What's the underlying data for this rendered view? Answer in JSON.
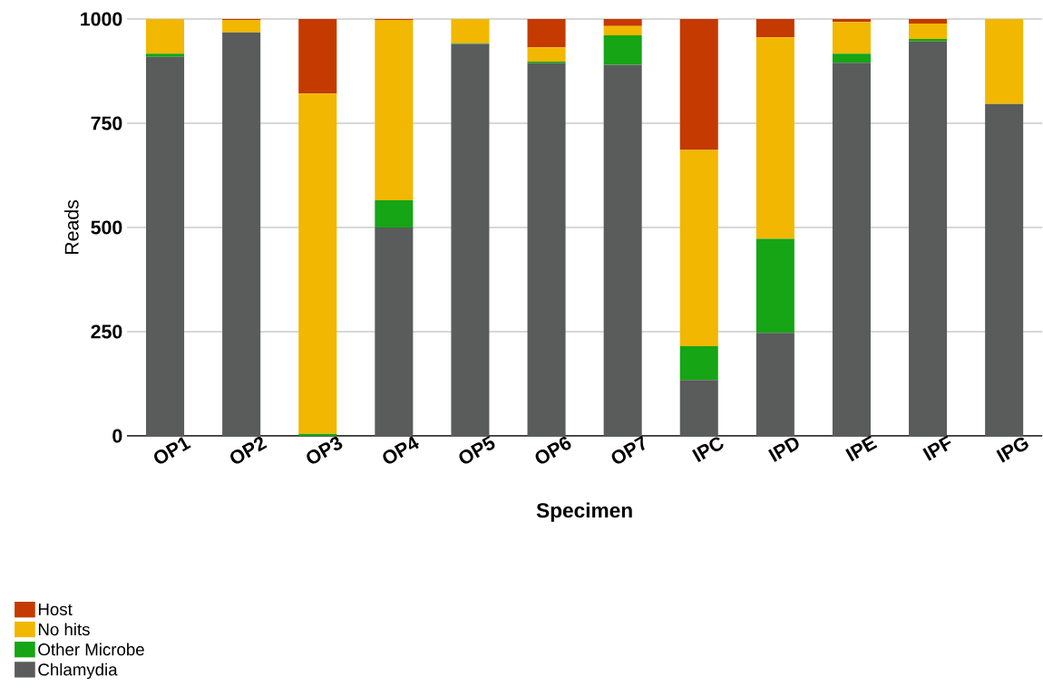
{
  "chart_data": {
    "type": "bar",
    "stacked": true,
    "xlabel": "Specimen",
    "ylabel": "Reads",
    "categories": [
      "OP1",
      "OP2",
      "OP3",
      "OP4",
      "OP5",
      "OP6",
      "OP7",
      "IPC",
      "IPD",
      "IPE",
      "IPF",
      "IPG"
    ],
    "series": [
      {
        "name": "Chlamydia",
        "color": "#5a5c5b",
        "values": [
          909,
          968,
          0,
          500,
          940,
          894,
          890,
          134,
          247,
          895,
          946,
          796
        ]
      },
      {
        "name": "Other Microbe",
        "color": "#15a515",
        "values": [
          8,
          0,
          5,
          65,
          2,
          4,
          71,
          81,
          226,
          22,
          6,
          0
        ]
      },
      {
        "name": "No hits",
        "color": "#f2b700",
        "values": [
          83,
          30,
          816,
          433,
          58,
          34,
          22,
          471,
          483,
          76,
          37,
          204
        ]
      },
      {
        "name": "Host",
        "color": "#c43a00",
        "values": [
          0,
          2,
          179,
          2,
          0,
          68,
          17,
          314,
          44,
          7,
          11,
          0
        ]
      }
    ],
    "ylim": [
      0,
      1000
    ],
    "yticks": [
      0,
      250,
      500,
      750,
      1000
    ],
    "grid": "y",
    "legend": "bottom left"
  }
}
